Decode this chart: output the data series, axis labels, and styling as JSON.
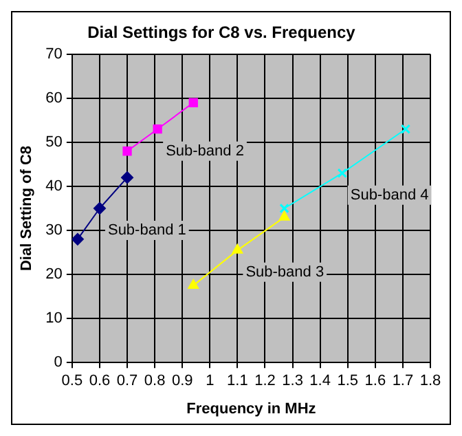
{
  "chart_data": {
    "type": "line",
    "title": "Dial Settings for C8 vs. Frequency",
    "xlabel": "Frequency in MHz",
    "ylabel": "Dial Setting of C8",
    "xlim": [
      0.5,
      1.8
    ],
    "xticks": [
      {
        "value": 0.5,
        "label": "0.5"
      },
      {
        "value": 0.6,
        "label": "0.6"
      },
      {
        "value": 0.7,
        "label": "0.7"
      },
      {
        "value": 0.8,
        "label": "0.8"
      },
      {
        "value": 0.9,
        "label": "0.9"
      },
      1,
      {
        "value": 1.1,
        "label": "1.1"
      },
      {
        "value": 1.2,
        "label": "1.2"
      },
      {
        "value": 1.3,
        "label": "1.3"
      },
      {
        "value": 1.4,
        "label": "1.4"
      },
      {
        "value": 1.5,
        "label": "1.5"
      },
      {
        "value": 1.6,
        "label": "1.6"
      },
      {
        "value": 1.7,
        "label": "1.7"
      },
      {
        "value": 1.8,
        "label": "1.8"
      }
    ],
    "ylim": [
      0,
      70
    ],
    "yticks": [
      0,
      10,
      20,
      30,
      40,
      50,
      60,
      70
    ],
    "grid": true,
    "legend": false,
    "series": [
      {
        "name": "Sub-band 1",
        "color": "#000080",
        "marker": "diamond",
        "x": [
          0.52,
          0.6,
          0.7
        ],
        "values": [
          28,
          35,
          42
        ]
      },
      {
        "name": "Sub-band 2",
        "color": "#ff00ff",
        "marker": "square",
        "x": [
          0.7,
          0.81,
          0.94
        ],
        "values": [
          48,
          53,
          59
        ]
      },
      {
        "name": "Sub-band 3",
        "color": "#ffff00",
        "marker": "triangle",
        "x": [
          0.94,
          1.1,
          1.27
        ],
        "values": [
          17.5,
          25.5,
          33
        ]
      },
      {
        "name": "Sub-band 4",
        "color": "#00ffff",
        "marker": "cross",
        "x": [
          1.27,
          1.48,
          1.71
        ],
        "values": [
          35,
          43,
          53
        ]
      }
    ]
  }
}
